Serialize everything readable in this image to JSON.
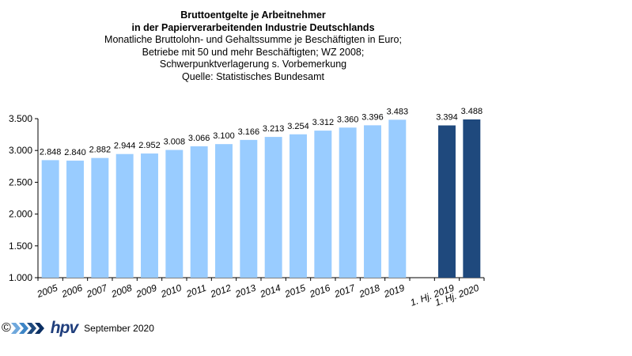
{
  "header": {
    "title_line1": "Bruttoentgelte  je Arbeitnehmer",
    "title_line2": "in der Papierverarbeitenden Industrie Deutschlands",
    "subtitle_line1": "Monatliche Bruttolohn-  und  Gehaltssumme je Beschäftigten  in Euro;",
    "subtitle_line2": "Betriebe  mit 50 und mehr Beschäftigten;  WZ 2008;",
    "subtitle_line3": "Schwerpunktverlagerung   s. Vorbemerkung",
    "subtitle_line4": "Quelle:  Statistisches Bundesamt"
  },
  "footer": {
    "copyright": "©",
    "brand": "hpv",
    "date": "September 2020"
  },
  "colors": {
    "annual_bar": "#99ccff",
    "halfyear_bar": "#1f497d"
  },
  "chart_data": {
    "type": "bar",
    "categories": [
      "2005",
      "2006",
      "2007",
      "2008",
      "2009",
      "2010",
      "2011",
      "2012",
      "2013",
      "2014",
      "2015",
      "2016",
      "2017",
      "2018",
      "2019",
      "",
      "1. Hj. 2019",
      "1. Hj. 2020"
    ],
    "values": [
      2848,
      2840,
      2882,
      2944,
      2952,
      3008,
      3066,
      3100,
      3166,
      3213,
      3254,
      3312,
      3360,
      3396,
      3483,
      null,
      3394,
      3488
    ],
    "value_labels": [
      "2.848",
      "2.840",
      "2.882",
      "2.944",
      "2.952",
      "3.008",
      "3.066",
      "3.100",
      "3.166",
      "3.213",
      "3.254",
      "3.312",
      "3.360",
      "3.396",
      "3.483",
      "",
      "3.394",
      "3.488"
    ],
    "bar_kind": [
      "annual",
      "annual",
      "annual",
      "annual",
      "annual",
      "annual",
      "annual",
      "annual",
      "annual",
      "annual",
      "annual",
      "annual",
      "annual",
      "annual",
      "annual",
      "gap",
      "halfyear",
      "halfyear"
    ],
    "ylim": [
      1000,
      3500
    ],
    "yticks": [
      1000,
      1500,
      2000,
      2500,
      3000,
      3500
    ],
    "ytick_labels": [
      "1.000",
      "1.500",
      "2.000",
      "2.500",
      "3.000",
      "3.500"
    ],
    "xlabel": "",
    "ylabel": "",
    "grid": false,
    "legend": "none"
  }
}
